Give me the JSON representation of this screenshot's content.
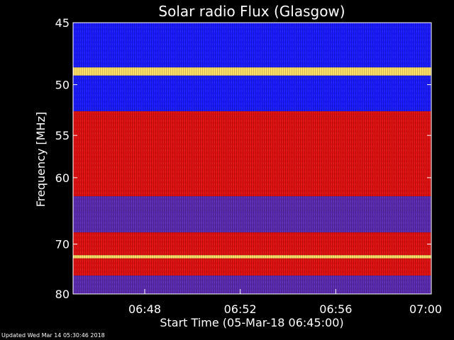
{
  "footer": {
    "updated": "Updated Wed Mar 14 05:30:46 2018"
  },
  "chart_data": {
    "type": "heatmap",
    "title": "Solar radio Flux (Glasgow)",
    "xlabel": "Start Time (05-Mar-18 06:45:00)",
    "ylabel": "Frequency [MHz]",
    "xlim": [
      "06:45",
      "07:00"
    ],
    "ylim": [
      45,
      80
    ],
    "x_ticks": [
      "06:48",
      "06:52",
      "06:56",
      "07:00"
    ],
    "y_ticks": [
      "45",
      "50",
      "55",
      "60",
      "70",
      "80"
    ],
    "y_scale": "reciprocal",
    "grid": false,
    "colors": {
      "low": "#1a1aff",
      "mid": "#5a2bb0",
      "high": "#e01010",
      "peak": "#ffe066"
    },
    "bands": [
      {
        "from": 45,
        "to": 48.5,
        "level": "low"
      },
      {
        "from": 48.5,
        "to": 49.2,
        "level": "peak"
      },
      {
        "from": 49.2,
        "to": 52.5,
        "level": "low"
      },
      {
        "from": 52.5,
        "to": 53.0,
        "level": "high"
      },
      {
        "from": 53.0,
        "to": 62.5,
        "level": "high"
      },
      {
        "from": 62.5,
        "to": 64.5,
        "level": "mid"
      },
      {
        "from": 64.5,
        "to": 68.0,
        "level": "mid"
      },
      {
        "from": 68.0,
        "to": 72.0,
        "level": "high"
      },
      {
        "from": 72.0,
        "to": 72.6,
        "level": "peak"
      },
      {
        "from": 72.6,
        "to": 76.0,
        "level": "high"
      },
      {
        "from": 76.0,
        "to": 80,
        "level": "mid"
      }
    ]
  }
}
